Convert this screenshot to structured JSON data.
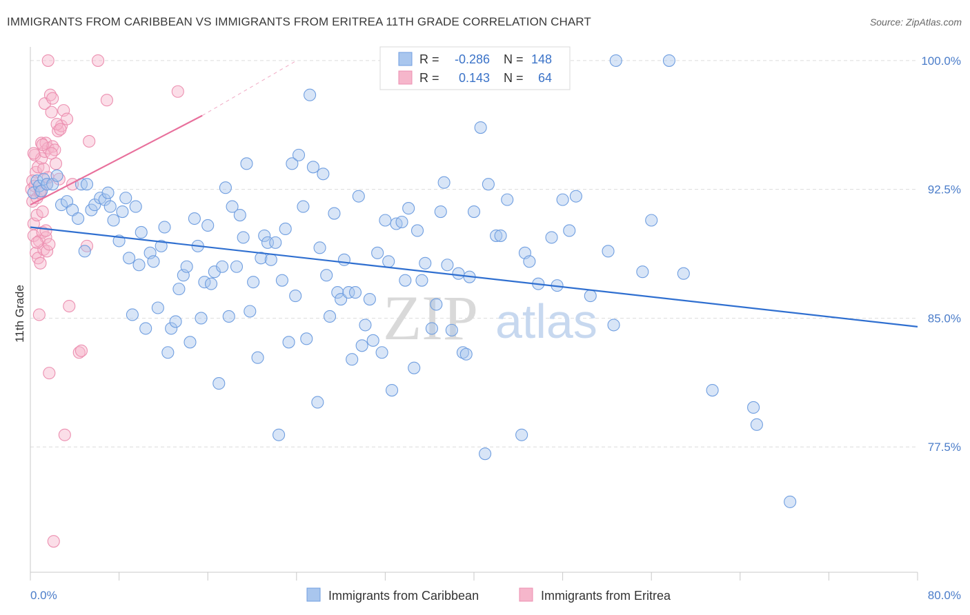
{
  "title": "IMMIGRANTS FROM CARIBBEAN VS IMMIGRANTS FROM ERITREA 11TH GRADE CORRELATION CHART",
  "source": "Source: ZipAtlas.com",
  "watermark": {
    "zip": "ZIP",
    "atlas": "atlas"
  },
  "colors": {
    "blue_fill": "#a9c6ee",
    "blue_stroke": "#6f9ee0",
    "blue_line": "#2f6fd0",
    "pink_fill": "#f6b6cb",
    "pink_stroke": "#ec8fb0",
    "pink_line": "#e8709c",
    "grid": "#dcdcdc",
    "axis_text": "#4a7cc9"
  },
  "legend": {
    "rows": [
      {
        "r_label": "R =",
        "r_value": "-0.286",
        "n_label": "N =",
        "n_value": "148",
        "series": "blue"
      },
      {
        "r_label": "R =",
        "r_value": "0.143",
        "n_label": "N =",
        "n_value": "64",
        "series": "pink"
      }
    ]
  },
  "chart_data": {
    "type": "scatter",
    "title": "IMMIGRANTS FROM CARIBBEAN VS IMMIGRANTS FROM ERITREA 11TH GRADE CORRELATION CHART",
    "xlabel": "",
    "ylabel": "11th Grade",
    "xlim": [
      0,
      80
    ],
    "ylim": [
      70.2,
      100.8
    ],
    "x_tick_labels": [
      "0.0%",
      "80.0%"
    ],
    "y_ticks": [
      77.5,
      85.0,
      92.5,
      100.0
    ],
    "y_tick_labels": [
      "77.5%",
      "85.0%",
      "92.5%",
      "100.0%"
    ],
    "grid": true,
    "legend_position": "top-center",
    "series": [
      {
        "name": "Immigrants from Caribbean",
        "color": "#a9c6ee",
        "trend": {
          "x": [
            0,
            80
          ],
          "y": [
            90.3,
            84.5
          ]
        },
        "points": [
          [
            0.3,
            92.3
          ],
          [
            0.6,
            93.0
          ],
          [
            0.8,
            92.7
          ],
          [
            1.0,
            92.4
          ],
          [
            1.2,
            93.1
          ],
          [
            1.5,
            92.8
          ],
          [
            2.0,
            92.8
          ],
          [
            2.4,
            93.3
          ],
          [
            2.8,
            91.6
          ],
          [
            3.3,
            91.8
          ],
          [
            3.8,
            91.3
          ],
          [
            4.3,
            90.8
          ],
          [
            4.6,
            92.8
          ],
          [
            4.9,
            88.9
          ],
          [
            5.1,
            92.8
          ],
          [
            5.5,
            91.3
          ],
          [
            5.8,
            91.6
          ],
          [
            6.3,
            92.0
          ],
          [
            6.7,
            91.9
          ],
          [
            7.0,
            92.3
          ],
          [
            7.2,
            91.5
          ],
          [
            7.5,
            90.7
          ],
          [
            8.0,
            89.5
          ],
          [
            8.3,
            91.2
          ],
          [
            8.6,
            92.0
          ],
          [
            8.9,
            88.5
          ],
          [
            9.2,
            85.2
          ],
          [
            9.5,
            91.5
          ],
          [
            9.8,
            88.1
          ],
          [
            10.0,
            90.0
          ],
          [
            10.4,
            84.4
          ],
          [
            10.8,
            88.8
          ],
          [
            11.1,
            88.3
          ],
          [
            11.5,
            85.6
          ],
          [
            11.8,
            89.2
          ],
          [
            12.1,
            90.3
          ],
          [
            12.4,
            83.0
          ],
          [
            12.7,
            84.4
          ],
          [
            13.1,
            84.8
          ],
          [
            13.4,
            86.7
          ],
          [
            13.8,
            87.5
          ],
          [
            14.1,
            88.0
          ],
          [
            14.4,
            83.6
          ],
          [
            14.8,
            90.8
          ],
          [
            15.1,
            89.2
          ],
          [
            15.4,
            85.0
          ],
          [
            15.7,
            87.1
          ],
          [
            16.0,
            90.4
          ],
          [
            16.3,
            87.0
          ],
          [
            16.6,
            87.7
          ],
          [
            17.0,
            81.2
          ],
          [
            17.3,
            88.0
          ],
          [
            17.6,
            92.6
          ],
          [
            17.9,
            85.1
          ],
          [
            18.2,
            91.5
          ],
          [
            18.6,
            88.0
          ],
          [
            18.9,
            91.0
          ],
          [
            19.2,
            89.7
          ],
          [
            19.5,
            94.0
          ],
          [
            19.8,
            85.4
          ],
          [
            20.1,
            87.1
          ],
          [
            20.5,
            82.7
          ],
          [
            20.8,
            88.5
          ],
          [
            21.1,
            89.8
          ],
          [
            21.4,
            89.4
          ],
          [
            21.7,
            88.4
          ],
          [
            22.1,
            89.4
          ],
          [
            22.4,
            78.2
          ],
          [
            22.7,
            87.2
          ],
          [
            23.0,
            90.2
          ],
          [
            23.3,
            83.6
          ],
          [
            23.6,
            94.0
          ],
          [
            23.9,
            86.3
          ],
          [
            24.2,
            94.5
          ],
          [
            24.6,
            91.5
          ],
          [
            24.9,
            83.8
          ],
          [
            25.2,
            98.0
          ],
          [
            25.5,
            93.8
          ],
          [
            25.9,
            80.1
          ],
          [
            26.1,
            89.1
          ],
          [
            26.4,
            93.4
          ],
          [
            26.7,
            87.5
          ],
          [
            27.0,
            85.1
          ],
          [
            27.4,
            91.1
          ],
          [
            27.7,
            86.5
          ],
          [
            28.0,
            86.1
          ],
          [
            28.3,
            88.4
          ],
          [
            28.7,
            86.5
          ],
          [
            29.0,
            82.6
          ],
          [
            29.3,
            86.5
          ],
          [
            29.6,
            92.1
          ],
          [
            29.9,
            83.4
          ],
          [
            30.2,
            84.6
          ],
          [
            30.6,
            86.1
          ],
          [
            30.9,
            83.7
          ],
          [
            31.3,
            88.8
          ],
          [
            31.7,
            83.0
          ],
          [
            32.0,
            90.7
          ],
          [
            32.3,
            88.3
          ],
          [
            32.6,
            80.8
          ],
          [
            33.0,
            90.5
          ],
          [
            33.5,
            90.6
          ],
          [
            33.8,
            87.2
          ],
          [
            34.1,
            91.4
          ],
          [
            34.6,
            82.1
          ],
          [
            34.9,
            90.1
          ],
          [
            35.3,
            87.2
          ],
          [
            35.6,
            88.2
          ],
          [
            36.2,
            84.4
          ],
          [
            36.6,
            85.8
          ],
          [
            37.0,
            91.2
          ],
          [
            37.3,
            92.9
          ],
          [
            37.6,
            88.1
          ],
          [
            38.0,
            84.3
          ],
          [
            38.6,
            87.6
          ],
          [
            39.0,
            83.0
          ],
          [
            39.3,
            82.9
          ],
          [
            39.6,
            87.4
          ],
          [
            40.0,
            91.2
          ],
          [
            40.6,
            96.1
          ],
          [
            41.0,
            77.1
          ],
          [
            41.3,
            92.8
          ],
          [
            42.0,
            89.8
          ],
          [
            42.4,
            89.8
          ],
          [
            43.0,
            91.9
          ],
          [
            44.3,
            78.2
          ],
          [
            44.6,
            88.8
          ],
          [
            45.0,
            88.3
          ],
          [
            45.8,
            87.0
          ],
          [
            47.0,
            89.7
          ],
          [
            47.5,
            86.9
          ],
          [
            48.0,
            91.9
          ],
          [
            48.6,
            90.1
          ],
          [
            49.2,
            92.1
          ],
          [
            50.5,
            86.3
          ],
          [
            52.1,
            88.9
          ],
          [
            52.6,
            84.6
          ],
          [
            52.8,
            100.0
          ],
          [
            55.2,
            87.7
          ],
          [
            56.0,
            90.7
          ],
          [
            57.6,
            100.0
          ],
          [
            58.9,
            87.6
          ],
          [
            61.5,
            80.8
          ],
          [
            65.2,
            79.8
          ],
          [
            65.5,
            78.8
          ],
          [
            68.5,
            74.3
          ]
        ]
      },
      {
        "name": "Immigrants from Eritrea",
        "color": "#f6b6cb",
        "trend": {
          "x": [
            0,
            15.5,
            24
          ],
          "y": [
            91.6,
            96.8,
            100.0
          ],
          "solid_until_x": 15.5
        },
        "points": [
          [
            0.1,
            92.5
          ],
          [
            0.2,
            91.8
          ],
          [
            0.3,
            90.5
          ],
          [
            0.3,
            89.8
          ],
          [
            0.4,
            94.5
          ],
          [
            0.5,
            93.5
          ],
          [
            0.5,
            88.8
          ],
          [
            0.6,
            92.0
          ],
          [
            0.6,
            91.0
          ],
          [
            0.7,
            93.8
          ],
          [
            0.7,
            88.5
          ],
          [
            0.8,
            89.5
          ],
          [
            0.8,
            85.2
          ],
          [
            0.9,
            92.3
          ],
          [
            0.9,
            88.2
          ],
          [
            1.0,
            95.2
          ],
          [
            1.0,
            94.3
          ],
          [
            1.1,
            91.2
          ],
          [
            1.1,
            90.0
          ],
          [
            1.2,
            89.0
          ],
          [
            1.2,
            93.7
          ],
          [
            1.3,
            94.7
          ],
          [
            1.3,
            97.5
          ],
          [
            1.4,
            95.2
          ],
          [
            1.4,
            89.7
          ],
          [
            1.5,
            92.8
          ],
          [
            1.5,
            88.9
          ],
          [
            1.6,
            94.9
          ],
          [
            1.6,
            93.2
          ],
          [
            1.7,
            89.3
          ],
          [
            1.7,
            81.8
          ],
          [
            1.8,
            98.0
          ],
          [
            1.9,
            97.0
          ],
          [
            2.0,
            97.8
          ],
          [
            2.0,
            95.0
          ],
          [
            2.1,
            72.0
          ],
          [
            2.2,
            94.8
          ],
          [
            2.3,
            94.0
          ],
          [
            2.5,
            95.9
          ],
          [
            2.6,
            93.1
          ],
          [
            2.8,
            96.2
          ],
          [
            3.0,
            97.1
          ],
          [
            3.1,
            78.2
          ],
          [
            3.3,
            96.6
          ],
          [
            3.5,
            85.7
          ],
          [
            3.8,
            92.8
          ],
          [
            4.4,
            83.0
          ],
          [
            4.6,
            83.1
          ],
          [
            5.1,
            89.2
          ],
          [
            5.3,
            95.3
          ],
          [
            6.1,
            100.0
          ],
          [
            6.9,
            97.7
          ],
          [
            13.3,
            98.2
          ],
          [
            0.2,
            93.0
          ],
          [
            0.4,
            92.7
          ],
          [
            0.9,
            92.4
          ],
          [
            1.1,
            95.1
          ],
          [
            1.9,
            94.6
          ],
          [
            2.4,
            96.3
          ],
          [
            0.6,
            89.4
          ],
          [
            0.3,
            94.6
          ],
          [
            1.4,
            90.1
          ],
          [
            1.6,
            100.0
          ],
          [
            2.7,
            96.0
          ]
        ]
      }
    ]
  },
  "bottom_legend": [
    {
      "label": "Immigrants from Caribbean",
      "series": "blue"
    },
    {
      "label": "Immigrants from Eritrea",
      "series": "pink"
    }
  ]
}
